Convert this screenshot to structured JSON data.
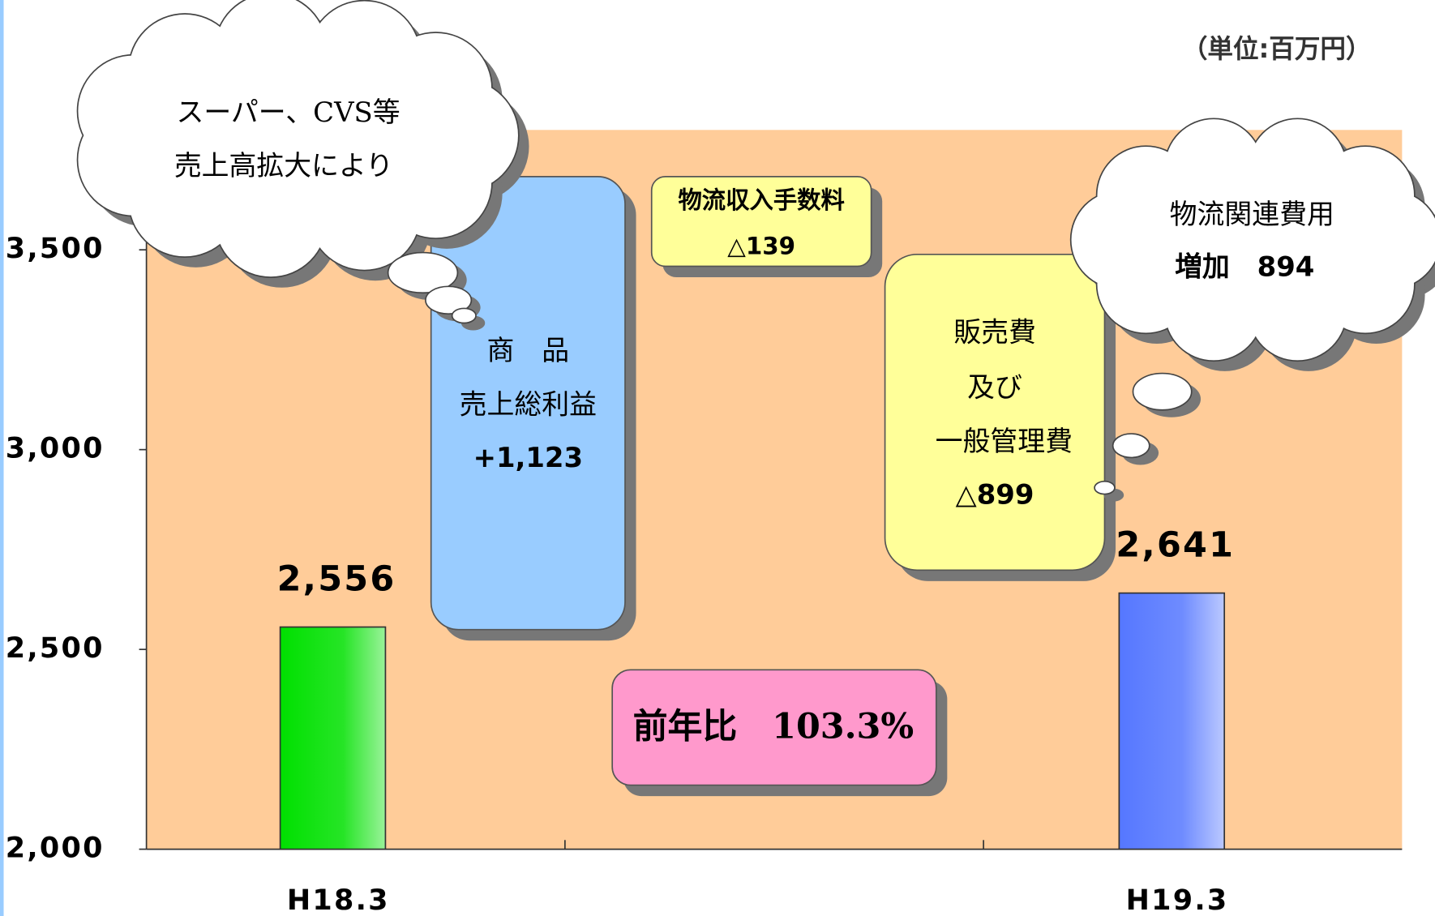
{
  "chart_data": {
    "type": "bar",
    "unit_label": "（単位:百万円）",
    "categories": [
      "H18.3",
      null,
      "H19.3"
    ],
    "values": [
      2556,
      null,
      2641
    ],
    "value_labels": [
      "2,556",
      null,
      "2,641"
    ],
    "colors": [
      "#00e000",
      null,
      "#5577ff"
    ],
    "ylim": [
      2000,
      3800
    ],
    "yticks": [
      {
        "value": 2000,
        "label": "2,000"
      },
      {
        "value": 2500,
        "label": "2,500"
      },
      {
        "value": 3000,
        "label": "3,000"
      },
      {
        "value": 3500,
        "label": "3,500"
      }
    ],
    "background": "#ffcc99",
    "annotations": [
      {
        "lines": [
          "スーパー、CVS等",
          "売上高拡大により"
        ]
      },
      {
        "lines": [
          "商　品",
          "売上総利益",
          "+1,123"
        ]
      },
      {
        "lines": [
          "物流収入手数料",
          "△139"
        ]
      },
      {
        "lines": [
          "販売費",
          "及び",
          "一般管理費",
          "△899"
        ]
      },
      {
        "lines": [
          "物流関連費用",
          "増加　894"
        ]
      },
      {
        "lines": [
          "前年比　103.3%"
        ]
      }
    ]
  }
}
